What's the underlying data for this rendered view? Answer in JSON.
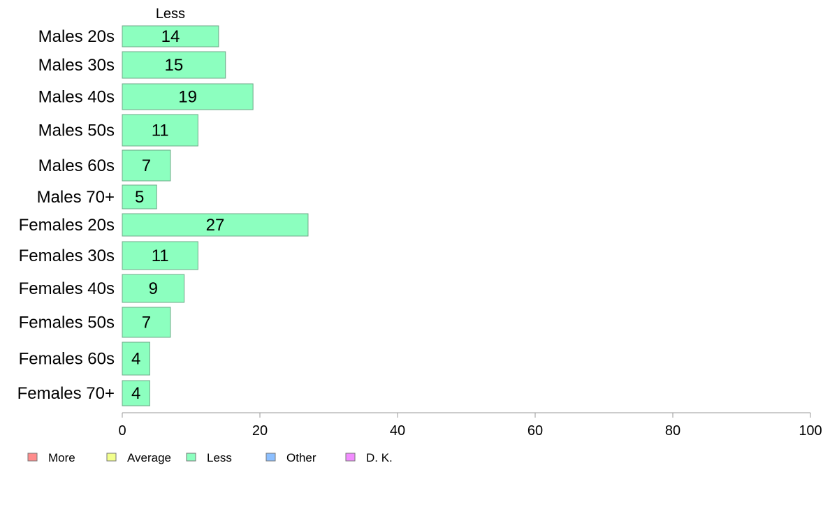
{
  "chart_data": {
    "type": "bar",
    "orientation": "horizontal",
    "categories": [
      "Males 20s",
      "Males 30s",
      "Males 40s",
      "Males 50s",
      "Males 60s",
      "Males 70+",
      "Females 20s",
      "Females 30s",
      "Females 40s",
      "Females 50s",
      "Females 60s",
      "Females 70+"
    ],
    "series": [
      {
        "name": "Less",
        "values": [
          14,
          15,
          19,
          11,
          7,
          5,
          27,
          11,
          9,
          7,
          4,
          4
        ],
        "color": "#8cffbf"
      }
    ],
    "series_header": "Less",
    "xlim": [
      0,
      100
    ],
    "xticks": [
      0,
      20,
      40,
      60,
      80,
      100
    ],
    "grid": false,
    "legend": {
      "placement": "bottom-left",
      "entries": [
        {
          "label": "More",
          "color": "#ff8c8c"
        },
        {
          "label": "Average",
          "color": "#f2ff8c"
        },
        {
          "label": "Less",
          "color": "#8cffbf"
        },
        {
          "label": "Other",
          "color": "#8cbfff"
        },
        {
          "label": "D. K.",
          "color": "#f28cff"
        }
      ]
    }
  }
}
